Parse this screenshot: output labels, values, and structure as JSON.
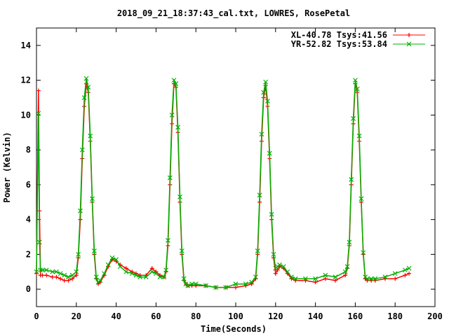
{
  "chart_data": {
    "type": "line",
    "title": "2018_09_21_18:37:43_cal.txt, LOWRES, RosePetal",
    "xlabel": "Time(Seconds)",
    "ylabel": "Power (Kelvin)",
    "xlim": [
      0,
      200
    ],
    "ylim": [
      -1,
      15
    ],
    "x_ticks": [
      "0",
      "20",
      "40",
      "60",
      "80",
      "100",
      "120",
      "140",
      "160",
      "180",
      "200"
    ],
    "y_ticks": [
      "0",
      "2",
      "4",
      "6",
      "8",
      "10",
      "12",
      "14"
    ],
    "grid": false,
    "legend_position": "top-right",
    "series": [
      {
        "name": "XL-40.78 Tsys:41.56",
        "color": "#ff0000",
        "marker": "plus",
        "x": [
          0,
          1,
          1.5,
          2,
          3,
          5,
          8,
          10,
          12,
          14,
          16,
          18,
          20,
          21,
          22,
          23,
          24,
          25,
          26,
          27,
          28,
          29,
          30,
          31,
          32,
          34,
          36,
          38,
          40,
          42,
          45,
          48,
          50,
          52,
          55,
          58,
          60,
          62,
          64,
          65,
          66,
          67,
          68,
          69,
          70,
          71,
          72,
          73,
          74,
          75,
          76,
          78,
          80,
          85,
          90,
          95,
          100,
          105,
          108,
          110,
          111,
          112,
          113,
          114,
          115,
          116,
          117,
          118,
          119,
          120,
          121,
          122,
          124,
          126,
          128,
          130,
          135,
          140,
          145,
          150,
          155,
          156,
          157,
          158,
          159,
          160,
          161,
          162,
          163,
          164,
          165,
          166,
          168,
          170,
          175,
          180,
          185,
          187
        ],
        "y": [
          0.9,
          11.4,
          4.5,
          0.8,
          0.8,
          0.8,
          0.7,
          0.7,
          0.6,
          0.5,
          0.5,
          0.6,
          0.8,
          1.8,
          4.0,
          7.5,
          10.5,
          11.8,
          11.3,
          8.5,
          5.0,
          2.0,
          0.6,
          0.3,
          0.4,
          0.8,
          1.3,
          1.7,
          1.6,
          1.4,
          1.2,
          1.0,
          0.9,
          0.8,
          0.8,
          1.2,
          1.0,
          0.8,
          0.7,
          1.0,
          2.5,
          6.0,
          9.5,
          11.8,
          11.6,
          9.0,
          5.0,
          2.0,
          0.5,
          0.3,
          0.2,
          0.2,
          0.2,
          0.2,
          0.1,
          0.1,
          0.1,
          0.2,
          0.3,
          0.6,
          2.0,
          5.0,
          8.5,
          11.0,
          11.7,
          10.5,
          7.5,
          4.0,
          1.8,
          0.9,
          1.1,
          1.3,
          1.2,
          0.9,
          0.6,
          0.5,
          0.5,
          0.4,
          0.6,
          0.5,
          0.8,
          1.2,
          2.5,
          6.0,
          9.5,
          11.8,
          11.3,
          8.5,
          5.0,
          2.0,
          0.6,
          0.5,
          0.5,
          0.5,
          0.6,
          0.6,
          0.8,
          0.9
        ]
      },
      {
        "name": "YR-52.82 Tsys:53.84",
        "color": "#00b000",
        "marker": "x",
        "x": [
          0,
          1,
          1.5,
          2,
          3,
          5,
          8,
          10,
          12,
          14,
          16,
          18,
          20,
          21,
          22,
          23,
          24,
          25,
          26,
          27,
          28,
          29,
          30,
          31,
          32,
          34,
          36,
          38,
          40,
          42,
          45,
          48,
          50,
          52,
          55,
          58,
          60,
          62,
          64,
          65,
          66,
          67,
          68,
          69,
          70,
          71,
          72,
          73,
          74,
          75,
          76,
          78,
          80,
          85,
          90,
          95,
          100,
          105,
          108,
          110,
          111,
          112,
          113,
          114,
          115,
          116,
          117,
          118,
          119,
          120,
          121,
          122,
          124,
          126,
          128,
          130,
          135,
          140,
          145,
          150,
          155,
          156,
          157,
          158,
          159,
          160,
          161,
          162,
          163,
          164,
          165,
          166,
          168,
          170,
          175,
          180,
          185,
          187
        ],
        "y": [
          1.0,
          10.1,
          2.7,
          1.1,
          1.1,
          1.1,
          1.0,
          1.0,
          0.9,
          0.8,
          0.7,
          0.8,
          1.0,
          2.0,
          4.5,
          8.0,
          11.0,
          12.1,
          11.6,
          8.8,
          5.2,
          2.2,
          0.7,
          0.4,
          0.5,
          0.9,
          1.4,
          1.8,
          1.7,
          1.3,
          1.0,
          0.9,
          0.8,
          0.7,
          0.7,
          1.0,
          0.9,
          0.7,
          0.7,
          1.1,
          2.8,
          6.4,
          10.0,
          12.0,
          11.8,
          9.3,
          5.3,
          2.2,
          0.6,
          0.3,
          0.2,
          0.3,
          0.3,
          0.2,
          0.1,
          0.1,
          0.3,
          0.3,
          0.4,
          0.7,
          2.2,
          5.4,
          8.9,
          11.3,
          11.9,
          10.8,
          7.8,
          4.3,
          2.0,
          1.2,
          1.3,
          1.4,
          1.3,
          1.0,
          0.7,
          0.6,
          0.6,
          0.6,
          0.8,
          0.7,
          1.0,
          1.3,
          2.7,
          6.3,
          9.8,
          12.0,
          11.5,
          8.8,
          5.2,
          2.1,
          0.7,
          0.6,
          0.6,
          0.6,
          0.7,
          0.9,
          1.1,
          1.2
        ]
      }
    ]
  }
}
